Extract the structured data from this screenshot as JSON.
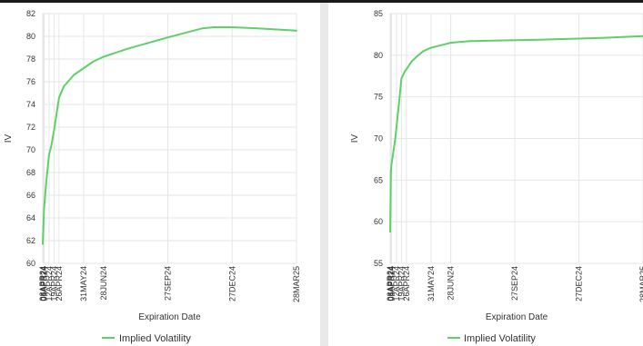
{
  "colors": {
    "series": "#5fd068",
    "grid": "#e6e6e6",
    "axis_text": "#333333",
    "divider": "#e9e9e9"
  },
  "x_ticks": [
    "03APR24",
    "04APR24",
    "05APR24",
    "12APR24",
    "19APR24",
    "26APR24",
    "31MAY24",
    "28JUN24",
    "27SEP24",
    "27DEC24",
    "28MAR25"
  ],
  "chart_data": [
    {
      "type": "line",
      "title": "",
      "xlabel": "Expiration Date",
      "ylabel": "IV",
      "ylim": [
        60,
        82
      ],
      "yticks": [
        60,
        62,
        64,
        66,
        68,
        70,
        72,
        74,
        76,
        78,
        80,
        82
      ],
      "grid": true,
      "legend": "bottom",
      "series": [
        {
          "name": "Implied Volatility",
          "x": [
            "2024-04-03",
            "2024-04-04",
            "2024-04-05",
            "2024-04-08",
            "2024-04-12",
            "2024-04-15",
            "2024-04-19",
            "2024-04-26",
            "2024-05-03",
            "2024-05-17",
            "2024-05-31",
            "2024-06-14",
            "2024-06-28",
            "2024-08-01",
            "2024-09-27",
            "2024-11-15",
            "2024-12-01",
            "2024-12-27",
            "2025-02-01",
            "2025-03-28"
          ],
          "values": [
            61.7,
            63.5,
            65.0,
            67.2,
            69.6,
            70.3,
            71.7,
            74.6,
            75.6,
            76.6,
            77.2,
            77.8,
            78.2,
            78.9,
            79.9,
            80.7,
            80.8,
            80.8,
            80.7,
            80.5
          ]
        }
      ]
    },
    {
      "type": "line",
      "title": "",
      "xlabel": "Expiration Date",
      "ylabel": "IV",
      "ylim": [
        55,
        85
      ],
      "yticks": [
        55,
        60,
        65,
        70,
        75,
        80,
        85
      ],
      "grid": true,
      "legend": "bottom",
      "series": [
        {
          "name": "Implied Volatility",
          "x": [
            "2024-04-03",
            "2024-04-04",
            "2024-04-05",
            "2024-04-10",
            "2024-04-15",
            "2024-04-19",
            "2024-04-24",
            "2024-04-26",
            "2024-05-03",
            "2024-05-10",
            "2024-05-20",
            "2024-05-31",
            "2024-06-14",
            "2024-06-28",
            "2024-07-26",
            "2024-09-27",
            "2024-10-25",
            "2024-12-27",
            "2025-02-01",
            "2025-03-28"
          ],
          "values": [
            58.8,
            66.0,
            66.9,
            69.8,
            73.8,
            77.2,
            78.1,
            78.3,
            79.2,
            79.8,
            80.5,
            80.9,
            81.2,
            81.5,
            81.7,
            81.8,
            81.85,
            82.0,
            82.1,
            82.3
          ]
        }
      ]
    }
  ]
}
